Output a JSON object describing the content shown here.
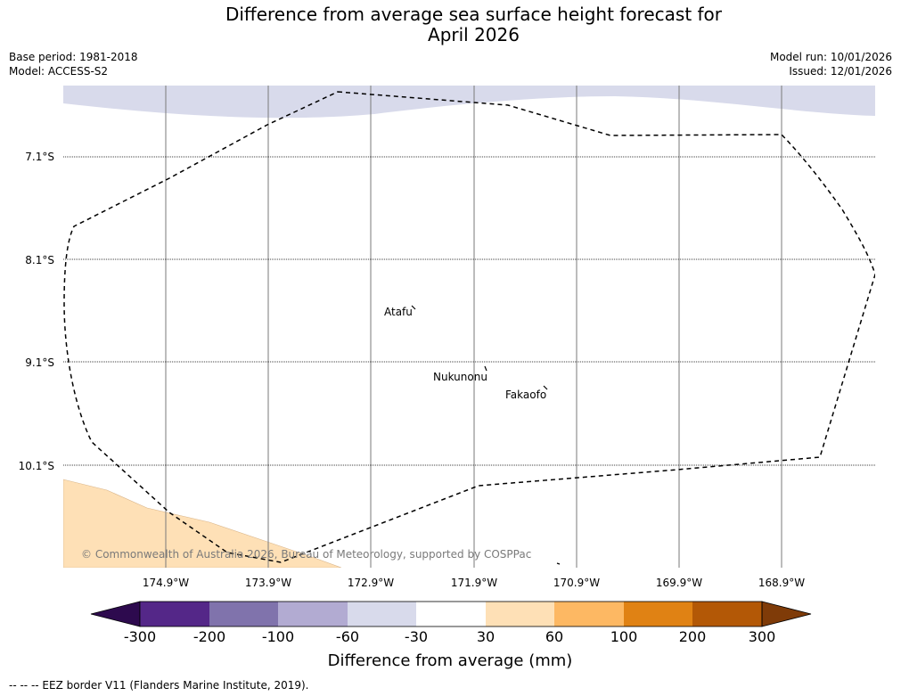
{
  "title_line1": "Difference from average sea surface height forecast for",
  "title_line2": "April 2026",
  "meta": {
    "base_period": "Base period: 1981-2018",
    "model": "Model: ACCESS-S2",
    "model_run": "Model run: 10/01/2026",
    "issued": "Issued: 12/01/2026"
  },
  "map": {
    "lat_labels": [
      "7.1°S",
      "8.1°S",
      "9.1°S",
      "10.1°S"
    ],
    "lon_labels": [
      "174.9°W",
      "173.9°W",
      "172.9°W",
      "171.9°W",
      "170.9°W",
      "169.9°W",
      "168.9°W"
    ],
    "places": [
      "Atafu",
      "Nukunonu",
      "Fakaofo"
    ],
    "copyright": "© Commonwealth of Australia 2026, Bureau of Meteorology, supported by COSPPac"
  },
  "colorbar": {
    "title": "Difference from average (mm)",
    "ticks": [
      "-300",
      "-200",
      "-100",
      "-60",
      "-30",
      "30",
      "60",
      "100",
      "200",
      "300"
    ],
    "colors": [
      "#2d0a4e",
      "#542788",
      "#8073ac",
      "#b2abd2",
      "#d8daeb",
      "#ffffff",
      "#fee0b6",
      "#fdb863",
      "#e08214",
      "#b35806",
      "#7f3b08"
    ]
  },
  "footer": "--  --  -- EEZ border V11 (Flanders Marine Institute, 2019)."
}
